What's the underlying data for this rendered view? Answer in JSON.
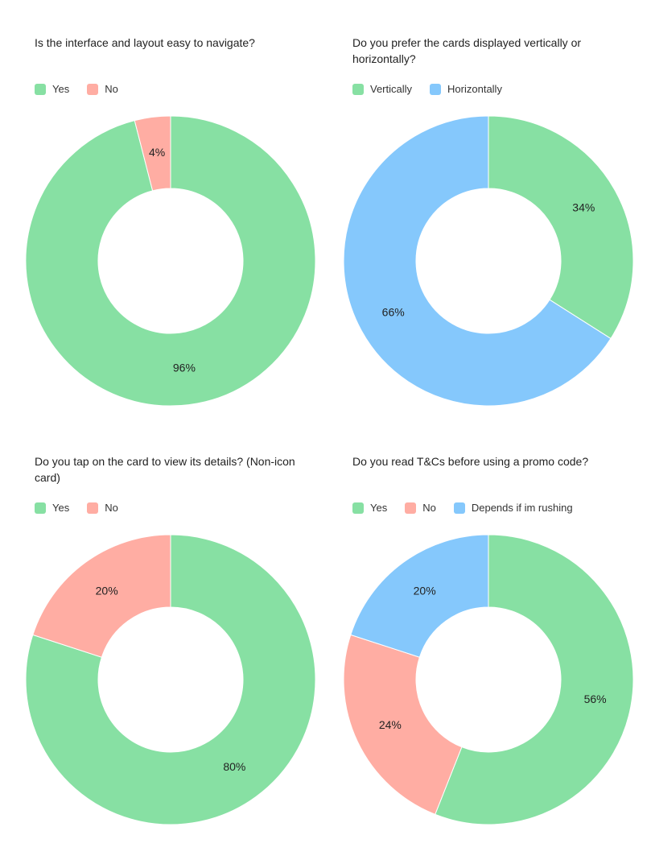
{
  "charts": [
    {
      "title": "Is the interface and layout easy to navigate?",
      "legend": [
        "Yes",
        "No"
      ]
    },
    {
      "title": "Do you prefer the cards displayed vertically or horizontally?",
      "legend": [
        "Vertically",
        "Horizontally"
      ]
    },
    {
      "title": "Do you tap on the card to view its details? (Non-icon card)",
      "legend": [
        "Yes",
        "No"
      ]
    },
    {
      "title": "Do you read T&Cs before using a promo code?",
      "legend": [
        "Yes",
        "No",
        "Depends if im rushing"
      ]
    }
  ],
  "colors": {
    "green": "#87e0a3",
    "red": "#ffada3",
    "blue": "#85c8fc"
  },
  "chart_data": [
    {
      "type": "pie",
      "title": "Is the interface and layout easy to navigate?",
      "categories": [
        "Yes",
        "No"
      ],
      "values": [
        96,
        4
      ],
      "labels": [
        "96%",
        "4%"
      ],
      "colors": [
        "#87e0a3",
        "#ffada3"
      ],
      "legend": "top-left"
    },
    {
      "type": "pie",
      "title": "Do you prefer the cards displayed vertically or horizontally?",
      "categories": [
        "Vertically",
        "Horizontally"
      ],
      "values": [
        34,
        66
      ],
      "labels": [
        "34%",
        "66%"
      ],
      "colors": [
        "#87e0a3",
        "#85c8fc"
      ],
      "legend": "top-left"
    },
    {
      "type": "pie",
      "title": "Do you tap on the card to view its details? (Non-icon card)",
      "categories": [
        "Yes",
        "No"
      ],
      "values": [
        80,
        20
      ],
      "labels": [
        "80%",
        "20%"
      ],
      "colors": [
        "#87e0a3",
        "#ffada3"
      ],
      "legend": "top-left"
    },
    {
      "type": "pie",
      "title": "Do you read T&Cs before using a promo code?",
      "categories": [
        "Yes",
        "No",
        "Depends if im rushing"
      ],
      "values": [
        56,
        24,
        20
      ],
      "labels": [
        "56%",
        "24%",
        "20%"
      ],
      "colors": [
        "#87e0a3",
        "#ffada3",
        "#85c8fc"
      ],
      "legend": "top-left"
    }
  ]
}
